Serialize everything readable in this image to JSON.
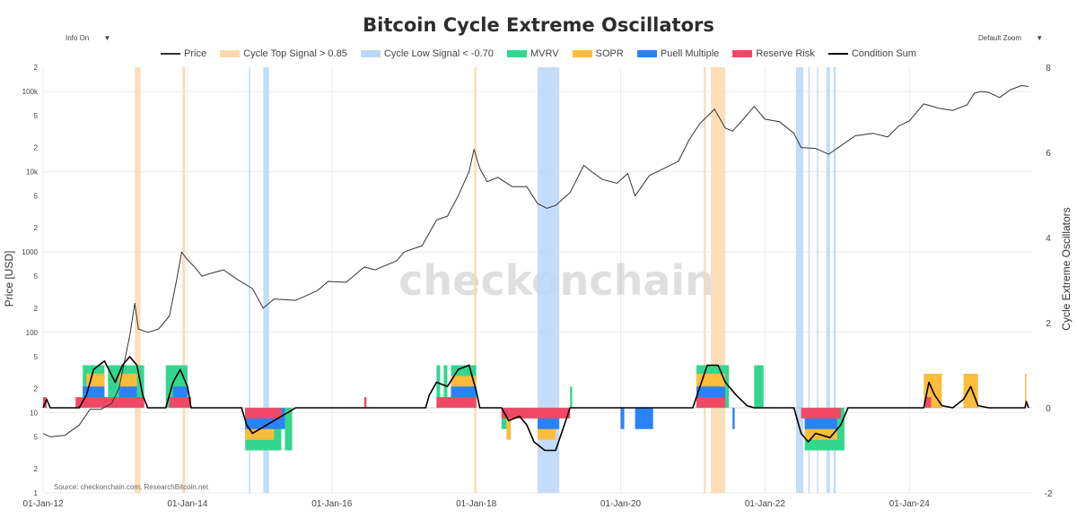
{
  "header": {
    "title": "Bitcoin Cycle Extreme Oscillators",
    "info_label": "Info On",
    "zoom_label": "Default Zoom",
    "dropdown_glyph": "▼"
  },
  "source": "Source: checkonchain.com, ResearchBitcoin.net",
  "watermark": "checkonchain",
  "chart_data": {
    "type": "line",
    "title": "Bitcoin Cycle Extreme Oscillators",
    "legend_position": "top-center",
    "grid": true,
    "legend": [
      {
        "name": "Price",
        "kind": "line",
        "color": "#333333"
      },
      {
        "name": "Cycle Top Signal > 0.85",
        "kind": "area",
        "color": "#fbd9ae"
      },
      {
        "name": "Cycle Low Signal < -0.70",
        "kind": "area",
        "color": "#bcd8f8"
      },
      {
        "name": "MVRV",
        "kind": "bar",
        "color": "#33d68e"
      },
      {
        "name": "SOPR",
        "kind": "bar",
        "color": "#fcbc3c"
      },
      {
        "name": "Puell Multiple",
        "kind": "bar",
        "color": "#2a83f5"
      },
      {
        "name": "Reserve Risk",
        "kind": "bar",
        "color": "#f04866"
      },
      {
        "name": "Condition Sum",
        "kind": "line",
        "color": "#000000"
      }
    ],
    "y_left": {
      "label": "Price [USD]",
      "scale": "log",
      "range": [
        1,
        200000
      ],
      "ticks": [
        {
          "v": 1,
          "t": "1"
        },
        {
          "v": 2,
          "t": "2"
        },
        {
          "v": 5,
          "t": "5"
        },
        {
          "v": 10,
          "t": "10"
        },
        {
          "v": 20,
          "t": "2"
        },
        {
          "v": 50,
          "t": "5"
        },
        {
          "v": 100,
          "t": "100"
        },
        {
          "v": 200,
          "t": "2"
        },
        {
          "v": 500,
          "t": "5"
        },
        {
          "v": 1000,
          "t": "1000"
        },
        {
          "v": 2000,
          "t": "2"
        },
        {
          "v": 5000,
          "t": "5"
        },
        {
          "v": 10000,
          "t": "10k"
        },
        {
          "v": 20000,
          "t": "2"
        },
        {
          "v": 50000,
          "t": "5"
        },
        {
          "v": 100000,
          "t": "100k"
        },
        {
          "v": 200000,
          "t": "2"
        }
      ]
    },
    "y_right": {
      "label": "Cycle Extreme Oscillators",
      "range": [
        -2,
        8
      ],
      "ticks": [
        -2,
        0,
        2,
        4,
        6,
        8
      ]
    },
    "x_axis": {
      "range": [
        2012.0,
        2025.7
      ],
      "ticks": [
        {
          "v": 2012,
          "t": "01-Jan-12"
        },
        {
          "v": 2014,
          "t": "01-Jan-14"
        },
        {
          "v": 2016,
          "t": "01-Jan-16"
        },
        {
          "v": 2018,
          "t": "01-Jan-18"
        },
        {
          "v": 2020,
          "t": "01-Jan-20"
        },
        {
          "v": 2022,
          "t": "01-Jan-22"
        },
        {
          "v": 2024,
          "t": "01-Jan-24"
        }
      ]
    },
    "price_series": {
      "name": "Price",
      "points": [
        [
          2012.0,
          5.5
        ],
        [
          2012.1,
          5
        ],
        [
          2012.3,
          5.2
        ],
        [
          2012.5,
          7
        ],
        [
          2012.65,
          11
        ],
        [
          2012.8,
          11
        ],
        [
          2012.95,
          13
        ],
        [
          2013.05,
          20
        ],
        [
          2013.2,
          90
        ],
        [
          2013.27,
          230
        ],
        [
          2013.32,
          110
        ],
        [
          2013.45,
          100
        ],
        [
          2013.6,
          110
        ],
        [
          2013.75,
          160
        ],
        [
          2013.85,
          450
        ],
        [
          2013.92,
          1000
        ],
        [
          2014.0,
          800
        ],
        [
          2014.1,
          650
        ],
        [
          2014.2,
          500
        ],
        [
          2014.35,
          550
        ],
        [
          2014.5,
          600
        ],
        [
          2014.7,
          450
        ],
        [
          2014.9,
          350
        ],
        [
          2015.05,
          200
        ],
        [
          2015.2,
          260
        ],
        [
          2015.5,
          250
        ],
        [
          2015.8,
          330
        ],
        [
          2015.95,
          430
        ],
        [
          2016.2,
          420
        ],
        [
          2016.45,
          650
        ],
        [
          2016.6,
          600
        ],
        [
          2016.9,
          780
        ],
        [
          2017.0,
          1000
        ],
        [
          2017.25,
          1200
        ],
        [
          2017.45,
          2500
        ],
        [
          2017.6,
          2800
        ],
        [
          2017.75,
          5000
        ],
        [
          2017.9,
          10000
        ],
        [
          2017.97,
          19000
        ],
        [
          2018.05,
          11000
        ],
        [
          2018.15,
          7500
        ],
        [
          2018.3,
          8500
        ],
        [
          2018.5,
          6500
        ],
        [
          2018.7,
          6500
        ],
        [
          2018.85,
          4000
        ],
        [
          2018.98,
          3500
        ],
        [
          2019.1,
          3800
        ],
        [
          2019.3,
          5500
        ],
        [
          2019.49,
          12000
        ],
        [
          2019.6,
          10000
        ],
        [
          2019.75,
          8000
        ],
        [
          2019.95,
          7200
        ],
        [
          2020.1,
          9500
        ],
        [
          2020.2,
          5000
        ],
        [
          2020.4,
          9000
        ],
        [
          2020.6,
          11000
        ],
        [
          2020.8,
          13500
        ],
        [
          2020.95,
          25000
        ],
        [
          2021.1,
          40000
        ],
        [
          2021.3,
          60000
        ],
        [
          2021.45,
          35000
        ],
        [
          2021.55,
          32000
        ],
        [
          2021.7,
          45000
        ],
        [
          2021.85,
          65000
        ],
        [
          2022.0,
          45000
        ],
        [
          2022.2,
          42000
        ],
        [
          2022.4,
          30000
        ],
        [
          2022.5,
          20000
        ],
        [
          2022.7,
          19500
        ],
        [
          2022.88,
          16500
        ],
        [
          2023.05,
          21000
        ],
        [
          2023.25,
          28000
        ],
        [
          2023.5,
          30000
        ],
        [
          2023.7,
          27000
        ],
        [
          2023.85,
          37000
        ],
        [
          2024.0,
          43000
        ],
        [
          2024.2,
          70000
        ],
        [
          2024.4,
          62000
        ],
        [
          2024.6,
          58000
        ],
        [
          2024.8,
          68000
        ],
        [
          2024.9,
          95000
        ],
        [
          2025.0,
          100000
        ],
        [
          2025.1,
          97000
        ],
        [
          2025.25,
          84000
        ],
        [
          2025.4,
          105000
        ],
        [
          2025.55,
          118000
        ],
        [
          2025.65,
          115000
        ]
      ]
    },
    "condition_sum_series": {
      "name": "Condition Sum",
      "points": [
        [
          2012.0,
          0
        ],
        [
          2012.05,
          0.2
        ],
        [
          2012.1,
          0
        ],
        [
          2012.5,
          0
        ],
        [
          2012.6,
          0.3
        ],
        [
          2012.7,
          0.9
        ],
        [
          2012.85,
          1.1
        ],
        [
          2013.0,
          0.6
        ],
        [
          2013.1,
          1
        ],
        [
          2013.2,
          1.2
        ],
        [
          2013.3,
          1
        ],
        [
          2013.38,
          0.3
        ],
        [
          2013.45,
          0
        ],
        [
          2013.7,
          0
        ],
        [
          2013.8,
          0.6
        ],
        [
          2013.9,
          0.9
        ],
        [
          2014.0,
          0.5
        ],
        [
          2014.05,
          0
        ],
        [
          2014.75,
          0
        ],
        [
          2014.82,
          -0.4
        ],
        [
          2014.9,
          -0.6
        ],
        [
          2015.0,
          -0.5
        ],
        [
          2015.1,
          -0.4
        ],
        [
          2015.2,
          -0.3
        ],
        [
          2015.3,
          -0.2
        ],
        [
          2015.4,
          -0.1
        ],
        [
          2015.5,
          0
        ],
        [
          2017.3,
          0
        ],
        [
          2017.35,
          0.3
        ],
        [
          2017.45,
          0.6
        ],
        [
          2017.6,
          0.5
        ],
        [
          2017.75,
          0.9
        ],
        [
          2017.9,
          1
        ],
        [
          2018.0,
          0.4
        ],
        [
          2018.05,
          0
        ],
        [
          2018.35,
          0
        ],
        [
          2018.45,
          -0.3
        ],
        [
          2018.6,
          -0.2
        ],
        [
          2018.7,
          -0.4
        ],
        [
          2018.8,
          -0.8
        ],
        [
          2018.95,
          -1
        ],
        [
          2019.1,
          -1
        ],
        [
          2019.2,
          -0.5
        ],
        [
          2019.3,
          0
        ],
        [
          2021.0,
          0
        ],
        [
          2021.1,
          0.5
        ],
        [
          2021.2,
          1
        ],
        [
          2021.35,
          1
        ],
        [
          2021.45,
          0.6
        ],
        [
          2021.6,
          0.3
        ],
        [
          2021.75,
          0.05
        ],
        [
          2021.85,
          0
        ],
        [
          2022.4,
          0
        ],
        [
          2022.5,
          -0.6
        ],
        [
          2022.6,
          -0.8
        ],
        [
          2022.7,
          -0.6
        ],
        [
          2022.9,
          -0.7
        ],
        [
          2023.05,
          -0.4
        ],
        [
          2023.15,
          0
        ],
        [
          2024.2,
          0
        ],
        [
          2024.27,
          0.6
        ],
        [
          2024.35,
          0.3
        ],
        [
          2024.45,
          0.05
        ],
        [
          2024.6,
          0
        ],
        [
          2024.75,
          0.2
        ],
        [
          2024.85,
          0.5
        ],
        [
          2024.95,
          0.05
        ],
        [
          2025.1,
          0
        ],
        [
          2025.6,
          0
        ],
        [
          2025.62,
          0.15
        ],
        [
          2025.65,
          0
        ]
      ]
    },
    "top_signal_bands": [
      [
        2013.27,
        2013.35
      ],
      [
        2013.93,
        2013.97
      ],
      [
        2017.97,
        2018.0
      ],
      [
        2021.15,
        2021.18
      ],
      [
        2021.25,
        2021.45
      ]
    ],
    "low_signal_bands": [
      [
        2014.85,
        2014.87
      ],
      [
        2015.05,
        2015.13
      ],
      [
        2018.85,
        2019.15
      ],
      [
        2022.43,
        2022.53
      ],
      [
        2022.6,
        2022.62
      ],
      [
        2022.72,
        2022.74
      ],
      [
        2022.85,
        2022.9
      ],
      [
        2022.95,
        2022.98
      ]
    ],
    "oscillator_bars": {
      "MVRV": [
        {
          "x0": 2012.55,
          "x1": 2012.85,
          "h": 1.0
        },
        {
          "x0": 2012.9,
          "x1": 2013.4,
          "h": 1.0
        },
        {
          "x0": 2013.7,
          "x1": 2014.0,
          "h": 1.0
        },
        {
          "x0": 2014.8,
          "x1": 2015.3,
          "h": -1.0
        },
        {
          "x0": 2015.35,
          "x1": 2015.45,
          "h": -1.0
        },
        {
          "x0": 2017.45,
          "x1": 2017.5,
          "h": 1.0
        },
        {
          "x0": 2017.55,
          "x1": 2017.6,
          "h": 1.0
        },
        {
          "x0": 2017.65,
          "x1": 2018.0,
          "h": 1.0
        },
        {
          "x0": 2018.35,
          "x1": 2018.42,
          "h": -0.5
        },
        {
          "x0": 2019.3,
          "x1": 2019.33,
          "h": 0.5
        },
        {
          "x0": 2021.05,
          "x1": 2021.5,
          "h": 1.0
        },
        {
          "x0": 2021.85,
          "x1": 2021.98,
          "h": 1.0
        },
        {
          "x0": 2022.55,
          "x1": 2023.1,
          "h": -1.0
        },
        {
          "x0": 2024.2,
          "x1": 2024.35,
          "h": 0.4
        },
        {
          "x0": 2024.75,
          "x1": 2024.9,
          "h": 0.4
        }
      ],
      "SOPR": [
        {
          "x0": 2012.6,
          "x1": 2012.85,
          "h": 0.8
        },
        {
          "x0": 2013.05,
          "x1": 2013.3,
          "h": 0.8
        },
        {
          "x0": 2014.8,
          "x1": 2015.2,
          "h": -0.75
        },
        {
          "x0": 2017.65,
          "x1": 2018.0,
          "h": 0.75
        },
        {
          "x0": 2018.42,
          "x1": 2018.48,
          "h": -0.75
        },
        {
          "x0": 2018.85,
          "x1": 2019.1,
          "h": -0.75
        },
        {
          "x0": 2021.05,
          "x1": 2021.45,
          "h": 0.8
        },
        {
          "x0": 2022.55,
          "x1": 2023.0,
          "h": -0.75
        },
        {
          "x0": 2024.2,
          "x1": 2024.45,
          "h": 0.8
        },
        {
          "x0": 2024.75,
          "x1": 2024.95,
          "h": 0.8
        },
        {
          "x0": 2025.6,
          "x1": 2025.62,
          "h": 0.8
        }
      ],
      "Puell Multiple": [
        {
          "x0": 2012.55,
          "x1": 2012.85,
          "h": 0.5
        },
        {
          "x0": 2013.05,
          "x1": 2013.3,
          "h": 0.5
        },
        {
          "x0": 2013.8,
          "x1": 2014.0,
          "h": 0.5
        },
        {
          "x0": 2014.8,
          "x1": 2015.35,
          "h": -0.5
        },
        {
          "x0": 2017.65,
          "x1": 2018.0,
          "h": 0.5
        },
        {
          "x0": 2018.85,
          "x1": 2019.15,
          "h": -0.5
        },
        {
          "x0": 2020.0,
          "x1": 2020.05,
          "h": -0.5
        },
        {
          "x0": 2020.2,
          "x1": 2020.45,
          "h": -0.5
        },
        {
          "x0": 2021.05,
          "x1": 2021.45,
          "h": 0.5
        },
        {
          "x0": 2021.55,
          "x1": 2021.58,
          "h": -0.5
        },
        {
          "x0": 2022.55,
          "x1": 2023.0,
          "h": -0.5
        }
      ],
      "Reserve Risk": [
        {
          "x0": 2012.0,
          "x1": 2012.05,
          "h": 0.25
        },
        {
          "x0": 2012.45,
          "x1": 2013.4,
          "h": 0.25
        },
        {
          "x0": 2013.75,
          "x1": 2014.05,
          "h": 0.25
        },
        {
          "x0": 2014.8,
          "x1": 2015.3,
          "h": -0.25
        },
        {
          "x0": 2016.45,
          "x1": 2016.48,
          "h": 0.25
        },
        {
          "x0": 2017.45,
          "x1": 2018.0,
          "h": 0.25
        },
        {
          "x0": 2018.35,
          "x1": 2019.3,
          "h": -0.25
        },
        {
          "x0": 2021.05,
          "x1": 2021.45,
          "h": 0.25
        },
        {
          "x0": 2022.5,
          "x1": 2023.05,
          "h": -0.25
        },
        {
          "x0": 2024.22,
          "x1": 2024.3,
          "h": 0.25
        }
      ]
    }
  }
}
